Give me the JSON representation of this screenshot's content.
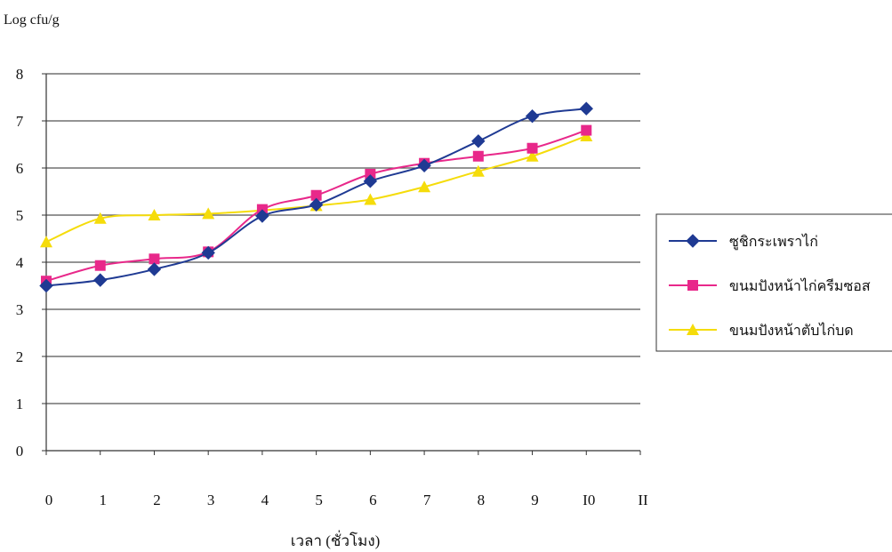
{
  "chart_data": {
    "type": "line",
    "ylabel": "Log cfu/g",
    "xlabel": "เวลา (ชั่วโมง)",
    "x_tick_labels": [
      "0",
      "1",
      "2",
      "3",
      "4",
      "5",
      "6",
      "7",
      "8",
      "9",
      "I0",
      "II"
    ],
    "y_tick_labels": [
      "0",
      "1",
      "2",
      "3",
      "4",
      "5",
      "6",
      "7",
      "8"
    ],
    "xlim": [
      0,
      11
    ],
    "ylim": [
      0,
      8
    ],
    "grid": "horizontal",
    "legend_position": "right",
    "x": [
      0,
      1,
      2,
      3,
      4,
      5,
      6,
      7,
      8,
      9,
      10
    ],
    "series": [
      {
        "name": "ซูชิกระเพราไก่",
        "color": "#1f3a93",
        "marker": "diamond",
        "values": [
          3.5,
          3.62,
          3.85,
          4.2,
          4.98,
          5.22,
          5.72,
          6.05,
          6.57,
          7.1,
          7.26
        ]
      },
      {
        "name": "ขนมปังหน้าไก่ครีมซอส",
        "color": "#e8288a",
        "marker": "square",
        "values": [
          3.6,
          3.93,
          4.07,
          4.22,
          5.12,
          5.42,
          5.87,
          6.1,
          6.25,
          6.42,
          6.8
        ]
      },
      {
        "name": "ขนมปังหน้าตับไก่บด",
        "color": "#f5dc0a",
        "marker": "triangle",
        "values": [
          4.43,
          4.93,
          5.0,
          5.03,
          5.1,
          5.2,
          5.33,
          5.6,
          5.93,
          6.25,
          6.68
        ]
      }
    ]
  }
}
